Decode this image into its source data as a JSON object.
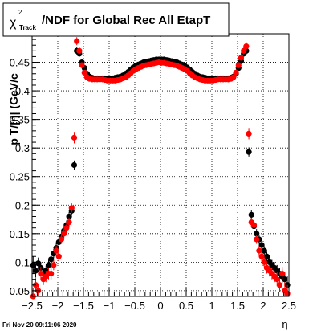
{
  "chart_data": {
    "type": "scatter",
    "title_main": "/NDF for Global Rec All EtapT",
    "title_chi": "χ",
    "title_sup": "2",
    "title_sub": "Track",
    "ylabel": "p T/|η| (GeV/c",
    "xlabel": "η",
    "date": "Fri Nov 20 09:11:06 2020",
    "xlim": [
      -2.5,
      2.5
    ],
    "ylim": [
      0.04,
      0.5
    ],
    "xticks": [
      -2.5,
      -2,
      -1.5,
      -1,
      -0.5,
      0,
      0.5,
      1,
      1.5,
      2,
      2.5
    ],
    "xtick_labels": [
      "−2.5",
      "−2",
      "−1.5",
      "−1",
      "−0.5",
      "0",
      "0.5",
      "1",
      "1.5",
      "2",
      "2.5"
    ],
    "yticks": [
      0.05,
      0.1,
      0.15,
      0.2,
      0.25,
      0.3,
      0.35,
      0.4,
      0.45
    ],
    "ytick_labels": [
      "0.05",
      "0.1",
      "0.15",
      "0.2",
      "0.25",
      "0.3",
      "0.35",
      "0.4",
      "0.45"
    ],
    "grid": true,
    "series": [
      {
        "color": "#000000",
        "points": [
          [
            -2.48,
            0.095,
            0.015
          ],
          [
            -2.43,
            0.085,
            0.012
          ],
          [
            -2.38,
            0.098,
            0.01
          ],
          [
            -2.33,
            0.09,
            0.01
          ],
          [
            -2.28,
            0.08,
            0.01
          ],
          [
            -2.23,
            0.085,
            0.009
          ],
          [
            -2.18,
            0.095,
            0.009
          ],
          [
            -2.13,
            0.105,
            0.009
          ],
          [
            -2.08,
            0.115,
            0.008
          ],
          [
            -2.03,
            0.125,
            0.008
          ],
          [
            -1.98,
            0.135,
            0.008
          ],
          [
            -1.93,
            0.145,
            0.008
          ],
          [
            -1.88,
            0.155,
            0.008
          ],
          [
            -1.83,
            0.165,
            0.008
          ],
          [
            -1.78,
            0.18,
            0.008
          ],
          [
            -1.73,
            0.19,
            0.008
          ],
          [
            -1.68,
            0.27,
            0.008
          ],
          [
            -1.63,
            0.47,
            0.006
          ],
          [
            -1.58,
            0.465,
            0.005
          ],
          [
            -1.53,
            0.45,
            0.005
          ],
          [
            -1.48,
            0.44,
            0.004
          ],
          [
            -1.43,
            0.43,
            0.004
          ],
          [
            -1.38,
            0.425,
            0.004
          ],
          [
            -1.33,
            0.423,
            0.004
          ],
          [
            -1.28,
            0.422,
            0.004
          ],
          [
            -1.23,
            0.422,
            0.004
          ],
          [
            -1.18,
            0.422,
            0.004
          ],
          [
            -1.13,
            0.422,
            0.004
          ],
          [
            -1.08,
            0.422,
            0.004
          ],
          [
            -1.03,
            0.422,
            0.004
          ],
          [
            -0.98,
            0.422,
            0.004
          ],
          [
            -0.93,
            0.422,
            0.004
          ],
          [
            -0.88,
            0.423,
            0.004
          ],
          [
            -0.83,
            0.424,
            0.004
          ],
          [
            -0.78,
            0.425,
            0.004
          ],
          [
            -0.73,
            0.427,
            0.004
          ],
          [
            -0.68,
            0.43,
            0.004
          ],
          [
            -0.63,
            0.433,
            0.004
          ],
          [
            -0.58,
            0.437,
            0.004
          ],
          [
            -0.53,
            0.441,
            0.004
          ],
          [
            -0.48,
            0.444,
            0.004
          ],
          [
            -0.43,
            0.446,
            0.004
          ],
          [
            -0.38,
            0.448,
            0.004
          ],
          [
            -0.33,
            0.45,
            0.004
          ],
          [
            -0.28,
            0.451,
            0.004
          ],
          [
            -0.23,
            0.452,
            0.004
          ],
          [
            -0.18,
            0.453,
            0.004
          ],
          [
            -0.13,
            0.454,
            0.004
          ],
          [
            -0.08,
            0.455,
            0.004
          ],
          [
            -0.03,
            0.455,
            0.004
          ],
          [
            0.02,
            0.455,
            0.004
          ],
          [
            0.07,
            0.455,
            0.004
          ],
          [
            0.12,
            0.454,
            0.004
          ],
          [
            0.17,
            0.453,
            0.004
          ],
          [
            0.22,
            0.452,
            0.004
          ],
          [
            0.27,
            0.451,
            0.004
          ],
          [
            0.32,
            0.45,
            0.004
          ],
          [
            0.37,
            0.448,
            0.004
          ],
          [
            0.42,
            0.446,
            0.004
          ],
          [
            0.47,
            0.444,
            0.004
          ],
          [
            0.52,
            0.441,
            0.004
          ],
          [
            0.57,
            0.437,
            0.004
          ],
          [
            0.62,
            0.433,
            0.004
          ],
          [
            0.67,
            0.43,
            0.004
          ],
          [
            0.72,
            0.427,
            0.004
          ],
          [
            0.77,
            0.425,
            0.004
          ],
          [
            0.82,
            0.424,
            0.004
          ],
          [
            0.87,
            0.423,
            0.004
          ],
          [
            0.92,
            0.422,
            0.004
          ],
          [
            0.97,
            0.422,
            0.004
          ],
          [
            1.02,
            0.422,
            0.004
          ],
          [
            1.07,
            0.422,
            0.004
          ],
          [
            1.12,
            0.422,
            0.004
          ],
          [
            1.17,
            0.422,
            0.004
          ],
          [
            1.22,
            0.422,
            0.004
          ],
          [
            1.27,
            0.422,
            0.004
          ],
          [
            1.32,
            0.422,
            0.004
          ],
          [
            1.37,
            0.423,
            0.004
          ],
          [
            1.42,
            0.425,
            0.004
          ],
          [
            1.47,
            0.43,
            0.004
          ],
          [
            1.52,
            0.44,
            0.004
          ],
          [
            1.57,
            0.452,
            0.005
          ],
          [
            1.62,
            0.465,
            0.005
          ],
          [
            1.67,
            0.47,
            0.006
          ],
          [
            1.72,
            0.293,
            0.008
          ],
          [
            1.77,
            0.183,
            0.008
          ],
          [
            1.82,
            0.163,
            0.008
          ],
          [
            1.87,
            0.15,
            0.008
          ],
          [
            1.92,
            0.14,
            0.008
          ],
          [
            1.97,
            0.13,
            0.008
          ],
          [
            2.02,
            0.12,
            0.008
          ],
          [
            2.07,
            0.11,
            0.008
          ],
          [
            2.12,
            0.1,
            0.009
          ],
          [
            2.17,
            0.095,
            0.009
          ],
          [
            2.22,
            0.09,
            0.01
          ],
          [
            2.27,
            0.085,
            0.01
          ],
          [
            2.32,
            0.08,
            0.01
          ],
          [
            2.37,
            0.075,
            0.012
          ],
          [
            2.42,
            0.07,
            0.012
          ],
          [
            2.47,
            0.06,
            0.015
          ]
        ]
      },
      {
        "color": "#ff0000",
        "points": [
          [
            -2.48,
            0.04,
            0.015
          ],
          [
            -2.43,
            0.06,
            0.012
          ],
          [
            -2.38,
            0.05,
            0.01
          ],
          [
            -2.33,
            0.08,
            0.012
          ],
          [
            -2.28,
            0.07,
            0.01
          ],
          [
            -2.23,
            0.075,
            0.01
          ],
          [
            -2.18,
            0.08,
            0.01
          ],
          [
            -2.13,
            0.08,
            0.01
          ],
          [
            -2.08,
            0.095,
            0.009
          ],
          [
            -2.03,
            0.12,
            0.009
          ],
          [
            -1.98,
            0.11,
            0.009
          ],
          [
            -1.93,
            0.14,
            0.008
          ],
          [
            -1.88,
            0.15,
            0.008
          ],
          [
            -1.83,
            0.16,
            0.008
          ],
          [
            -1.78,
            0.17,
            0.008
          ],
          [
            -1.73,
            0.195,
            0.008
          ],
          [
            -1.68,
            0.318,
            0.01
          ],
          [
            -1.63,
            0.487,
            0.007
          ],
          [
            -1.58,
            0.47,
            0.006
          ],
          [
            -1.53,
            0.445,
            0.005
          ],
          [
            -1.48,
            0.432,
            0.004
          ],
          [
            -1.43,
            0.424,
            0.004
          ],
          [
            -1.38,
            0.421,
            0.004
          ],
          [
            -1.33,
            0.42,
            0.004
          ],
          [
            -1.28,
            0.42,
            0.004
          ],
          [
            -1.23,
            0.42,
            0.004
          ],
          [
            -1.18,
            0.42,
            0.004
          ],
          [
            -1.13,
            0.42,
            0.004
          ],
          [
            -1.08,
            0.419,
            0.004
          ],
          [
            -1.03,
            0.418,
            0.004
          ],
          [
            -0.98,
            0.418,
            0.004
          ],
          [
            -0.93,
            0.418,
            0.004
          ],
          [
            -0.88,
            0.418,
            0.004
          ],
          [
            -0.83,
            0.419,
            0.004
          ],
          [
            -0.78,
            0.42,
            0.004
          ],
          [
            -0.73,
            0.422,
            0.004
          ],
          [
            -0.68,
            0.424,
            0.004
          ],
          [
            -0.63,
            0.427,
            0.004
          ],
          [
            -0.58,
            0.431,
            0.004
          ],
          [
            -0.53,
            0.435,
            0.004
          ],
          [
            -0.48,
            0.438,
            0.004
          ],
          [
            -0.43,
            0.44,
            0.004
          ],
          [
            -0.38,
            0.442,
            0.004
          ],
          [
            -0.33,
            0.444,
            0.004
          ],
          [
            -0.28,
            0.445,
            0.004
          ],
          [
            -0.23,
            0.446,
            0.004
          ],
          [
            -0.18,
            0.447,
            0.004
          ],
          [
            -0.13,
            0.448,
            0.004
          ],
          [
            -0.08,
            0.449,
            0.004
          ],
          [
            -0.03,
            0.45,
            0.004
          ],
          [
            0.02,
            0.449,
            0.004
          ],
          [
            0.07,
            0.449,
            0.004
          ],
          [
            0.12,
            0.448,
            0.004
          ],
          [
            0.17,
            0.447,
            0.004
          ],
          [
            0.22,
            0.446,
            0.004
          ],
          [
            0.27,
            0.445,
            0.004
          ],
          [
            0.32,
            0.444,
            0.004
          ],
          [
            0.37,
            0.442,
            0.004
          ],
          [
            0.42,
            0.44,
            0.004
          ],
          [
            0.47,
            0.438,
            0.004
          ],
          [
            0.52,
            0.435,
            0.004
          ],
          [
            0.57,
            0.431,
            0.004
          ],
          [
            0.62,
            0.427,
            0.004
          ],
          [
            0.67,
            0.424,
            0.004
          ],
          [
            0.72,
            0.422,
            0.004
          ],
          [
            0.77,
            0.42,
            0.004
          ],
          [
            0.82,
            0.419,
            0.004
          ],
          [
            0.87,
            0.418,
            0.004
          ],
          [
            0.92,
            0.418,
            0.004
          ],
          [
            0.97,
            0.418,
            0.004
          ],
          [
            1.02,
            0.418,
            0.004
          ],
          [
            1.07,
            0.419,
            0.004
          ],
          [
            1.12,
            0.42,
            0.004
          ],
          [
            1.17,
            0.42,
            0.004
          ],
          [
            1.22,
            0.42,
            0.004
          ],
          [
            1.27,
            0.42,
            0.004
          ],
          [
            1.32,
            0.42,
            0.004
          ],
          [
            1.37,
            0.421,
            0.004
          ],
          [
            1.42,
            0.424,
            0.004
          ],
          [
            1.47,
            0.432,
            0.004
          ],
          [
            1.52,
            0.445,
            0.005
          ],
          [
            1.57,
            0.458,
            0.005
          ],
          [
            1.62,
            0.47,
            0.006
          ],
          [
            1.67,
            0.478,
            0.007
          ],
          [
            1.72,
            0.325,
            0.01
          ],
          [
            1.77,
            0.17,
            0.008
          ],
          [
            1.82,
            0.165,
            0.008
          ],
          [
            1.87,
            0.14,
            0.008
          ],
          [
            1.92,
            0.12,
            0.009
          ],
          [
            1.97,
            0.11,
            0.009
          ],
          [
            2.02,
            0.1,
            0.009
          ],
          [
            2.07,
            0.09,
            0.01
          ],
          [
            2.12,
            0.085,
            0.01
          ],
          [
            2.17,
            0.08,
            0.01
          ],
          [
            2.22,
            0.075,
            0.01
          ],
          [
            2.27,
            0.07,
            0.012
          ],
          [
            2.32,
            0.06,
            0.012
          ],
          [
            2.37,
            0.08,
            0.012
          ],
          [
            2.42,
            0.05,
            0.015
          ],
          [
            2.47,
            0.045,
            0.015
          ]
        ]
      }
    ]
  }
}
